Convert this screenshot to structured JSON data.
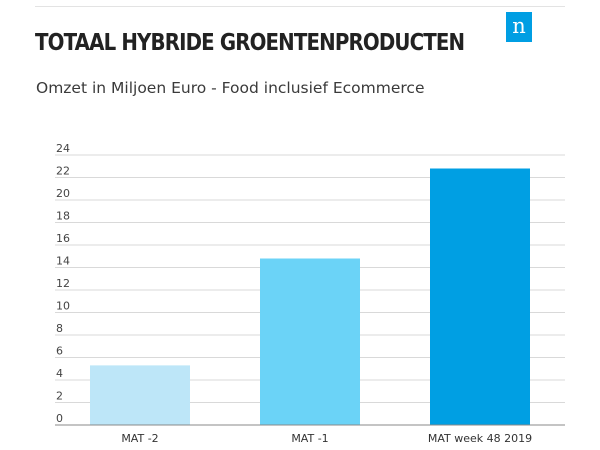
{
  "header": {
    "title": "TOTAAL HYBRIDE GROENTENPRODUCTEN",
    "subtitle": "Omzet in Miljoen Euro - Food inclusief Ecommerce",
    "logo_letter": "n"
  },
  "colors": {
    "brand": "#009ee3",
    "grid": "#d9d9d9",
    "axis": "#888888"
  },
  "chart_data": {
    "type": "bar",
    "categories": [
      "MAT -2",
      "MAT -1",
      "MAT week 48 2019"
    ],
    "values": [
      5.3,
      14.8,
      22.8
    ],
    "colors": [
      "#bde6f8",
      "#6bd3f7",
      "#009fe3"
    ],
    "ylim": [
      0,
      24
    ],
    "yticks": [
      0,
      2,
      4,
      6,
      8,
      10,
      12,
      14,
      16,
      18,
      20,
      22,
      24
    ],
    "grid": true,
    "legend": "none"
  }
}
